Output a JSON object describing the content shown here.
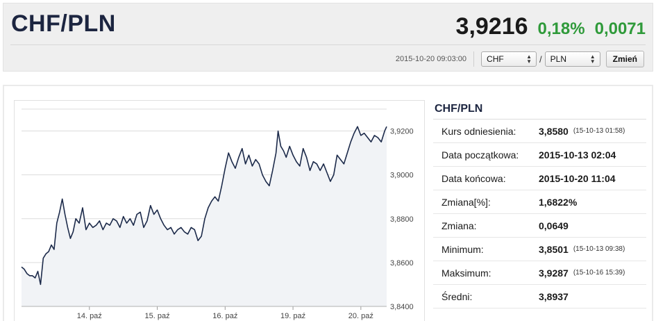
{
  "header": {
    "title": "CHF/PLN",
    "price": "3,9216",
    "change_pct": "0,18%",
    "change_abs": "0,0071",
    "timestamp": "2015-10-20 09:03:00",
    "base_select": "CHF",
    "separator": "/",
    "quote_select": "PLN",
    "change_button": "Zmień",
    "up_color": "#2f9a3a"
  },
  "chart_data": {
    "type": "line",
    "title": "",
    "xlabel": "",
    "ylabel": "",
    "y_axis_position": "right",
    "grid": true,
    "ylim": [
      3.84,
      3.93
    ],
    "y_ticks": [
      "3,8400",
      "3,8600",
      "3,8800",
      "3,9000",
      "3,9200"
    ],
    "x_ticks": [
      {
        "label": "14. paź",
        "index": 1
      },
      {
        "label": "15. paź",
        "index": 2
      },
      {
        "label": "16. paź",
        "index": 3
      },
      {
        "label": "19. paź",
        "index": 4
      },
      {
        "label": "20. paź",
        "index": 5
      }
    ],
    "x_range": [
      0.0,
      5.38
    ],
    "line_color": "#1c2a4a",
    "series": [
      {
        "points": [
          [
            0.0,
            3.858
          ],
          [
            0.04,
            3.857
          ],
          [
            0.08,
            3.855
          ],
          [
            0.12,
            3.854
          ],
          [
            0.16,
            3.854
          ],
          [
            0.2,
            3.853
          ],
          [
            0.24,
            3.856
          ],
          [
            0.28,
            3.85
          ],
          [
            0.32,
            3.862
          ],
          [
            0.36,
            3.864
          ],
          [
            0.4,
            3.865
          ],
          [
            0.44,
            3.868
          ],
          [
            0.48,
            3.866
          ],
          [
            0.52,
            3.878
          ],
          [
            0.56,
            3.883
          ],
          [
            0.6,
            3.889
          ],
          [
            0.64,
            3.882
          ],
          [
            0.68,
            3.876
          ],
          [
            0.72,
            3.871
          ],
          [
            0.76,
            3.874
          ],
          [
            0.8,
            3.88
          ],
          [
            0.85,
            3.878
          ],
          [
            0.9,
            3.885
          ],
          [
            0.95,
            3.875
          ],
          [
            1.0,
            3.878
          ],
          [
            1.05,
            3.876
          ],
          [
            1.1,
            3.877
          ],
          [
            1.15,
            3.879
          ],
          [
            1.2,
            3.875
          ],
          [
            1.25,
            3.878
          ],
          [
            1.3,
            3.877
          ],
          [
            1.35,
            3.88
          ],
          [
            1.4,
            3.879
          ],
          [
            1.45,
            3.876
          ],
          [
            1.5,
            3.881
          ],
          [
            1.55,
            3.878
          ],
          [
            1.6,
            3.88
          ],
          [
            1.65,
            3.877
          ],
          [
            1.7,
            3.882
          ],
          [
            1.75,
            3.883
          ],
          [
            1.8,
            3.876
          ],
          [
            1.85,
            3.879
          ],
          [
            1.9,
            3.886
          ],
          [
            1.95,
            3.882
          ],
          [
            2.0,
            3.884
          ],
          [
            2.05,
            3.88
          ],
          [
            2.1,
            3.877
          ],
          [
            2.15,
            3.875
          ],
          [
            2.2,
            3.876
          ],
          [
            2.25,
            3.873
          ],
          [
            2.3,
            3.875
          ],
          [
            2.35,
            3.876
          ],
          [
            2.4,
            3.874
          ],
          [
            2.45,
            3.873
          ],
          [
            2.5,
            3.876
          ],
          [
            2.55,
            3.875
          ],
          [
            2.6,
            3.87
          ],
          [
            2.65,
            3.872
          ],
          [
            2.7,
            3.88
          ],
          [
            2.75,
            3.885
          ],
          [
            2.8,
            3.888
          ],
          [
            2.85,
            3.89
          ],
          [
            2.9,
            3.888
          ],
          [
            2.95,
            3.895
          ],
          [
            3.0,
            3.903
          ],
          [
            3.05,
            3.91
          ],
          [
            3.1,
            3.906
          ],
          [
            3.15,
            3.903
          ],
          [
            3.2,
            3.908
          ],
          [
            3.25,
            3.912
          ],
          [
            3.3,
            3.905
          ],
          [
            3.35,
            3.909
          ],
          [
            3.4,
            3.904
          ],
          [
            3.45,
            3.907
          ],
          [
            3.5,
            3.905
          ],
          [
            3.55,
            3.9
          ],
          [
            3.6,
            3.897
          ],
          [
            3.65,
            3.895
          ],
          [
            3.7,
            3.902
          ],
          [
            3.75,
            3.91
          ],
          [
            3.78,
            3.92
          ],
          [
            3.82,
            3.913
          ],
          [
            3.86,
            3.911
          ],
          [
            3.9,
            3.908
          ],
          [
            3.95,
            3.913
          ],
          [
            4.0,
            3.909
          ],
          [
            4.05,
            3.906
          ],
          [
            4.1,
            3.904
          ],
          [
            4.15,
            3.912
          ],
          [
            4.2,
            3.908
          ],
          [
            4.25,
            3.902
          ],
          [
            4.3,
            3.906
          ],
          [
            4.35,
            3.905
          ],
          [
            4.4,
            3.902
          ],
          [
            4.45,
            3.905
          ],
          [
            4.5,
            3.901
          ],
          [
            4.55,
            3.897
          ],
          [
            4.6,
            3.9
          ],
          [
            4.65,
            3.909
          ],
          [
            4.7,
            3.907
          ],
          [
            4.75,
            3.905
          ],
          [
            4.8,
            3.91
          ],
          [
            4.85,
            3.915
          ],
          [
            4.9,
            3.919
          ],
          [
            4.95,
            3.922
          ],
          [
            5.0,
            3.918
          ],
          [
            5.05,
            3.919
          ],
          [
            5.1,
            3.917
          ],
          [
            5.15,
            3.915
          ],
          [
            5.2,
            3.918
          ],
          [
            5.25,
            3.917
          ],
          [
            5.3,
            3.915
          ],
          [
            5.35,
            3.92
          ],
          [
            5.38,
            3.922
          ]
        ]
      }
    ]
  },
  "info": {
    "title": "CHF/PLN",
    "rows": [
      {
        "label": "Kurs odniesienia:",
        "value": "3,8580",
        "note": "(15-10-13 01:58)"
      },
      {
        "label": "Data początkowa:",
        "value": "2015-10-13 02:04",
        "note": ""
      },
      {
        "label": "Data końcowa:",
        "value": "2015-10-20 11:04",
        "note": ""
      },
      {
        "label": "Zmiana[%]:",
        "value": "1,6822%",
        "note": ""
      },
      {
        "label": "Zmiana:",
        "value": "0,0649",
        "note": ""
      },
      {
        "label": "Minimum:",
        "value": "3,8501",
        "note": "(15-10-13 09:38)"
      },
      {
        "label": "Maksimum:",
        "value": "3,9287",
        "note": "(15-10-16 15:39)"
      },
      {
        "label": "Średni:",
        "value": "3,8937",
        "note": ""
      }
    ]
  }
}
